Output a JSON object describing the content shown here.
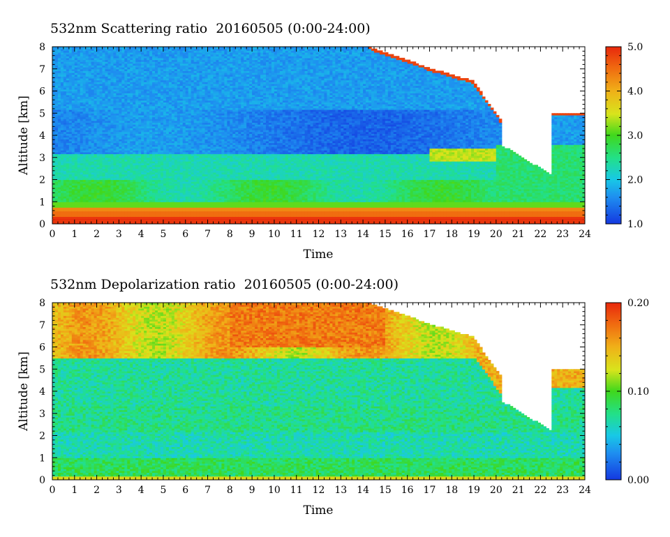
{
  "chart_data": [
    {
      "type": "heatmap",
      "title": "532nm Scattering ratio  20160505 (0:00-24:00)",
      "xlabel": "Time",
      "ylabel": "Altitude [km]",
      "xlim": [
        0,
        24
      ],
      "ylim": [
        0,
        8
      ],
      "xticks": [
        "0",
        "1",
        "2",
        "3",
        "4",
        "5",
        "6",
        "7",
        "8",
        "9",
        "10",
        "11",
        "12",
        "13",
        "14",
        "15",
        "16",
        "17",
        "18",
        "19",
        "20",
        "21",
        "22",
        "23",
        "24"
      ],
      "yticks": [
        "0",
        "1",
        "2",
        "3",
        "4",
        "5",
        "6",
        "7",
        "8"
      ],
      "colorbar": {
        "min": 1.0,
        "max": 5.0,
        "labels": [
          "1.0",
          "2.0",
          "3.0",
          "4.0",
          "5.0"
        ]
      },
      "reference_line_altitude_km": 0.2
    },
    {
      "type": "heatmap",
      "title": "532nm Depolarization ratio  20160505 (0:00-24:00)",
      "xlabel": "Time",
      "ylabel": "Altitude [km]",
      "xlim": [
        0,
        24
      ],
      "ylim": [
        0,
        8
      ],
      "xticks": [
        "0",
        "1",
        "2",
        "3",
        "4",
        "5",
        "6",
        "7",
        "8",
        "9",
        "10",
        "11",
        "12",
        "13",
        "14",
        "15",
        "16",
        "17",
        "18",
        "19",
        "20",
        "21",
        "22",
        "23",
        "24"
      ],
      "yticks": [
        "0",
        "1",
        "2",
        "3",
        "4",
        "5",
        "6",
        "7",
        "8"
      ],
      "colorbar": {
        "min": 0.0,
        "max": 0.2,
        "labels": [
          "0.00",
          "0.10",
          "0.20"
        ]
      }
    }
  ]
}
